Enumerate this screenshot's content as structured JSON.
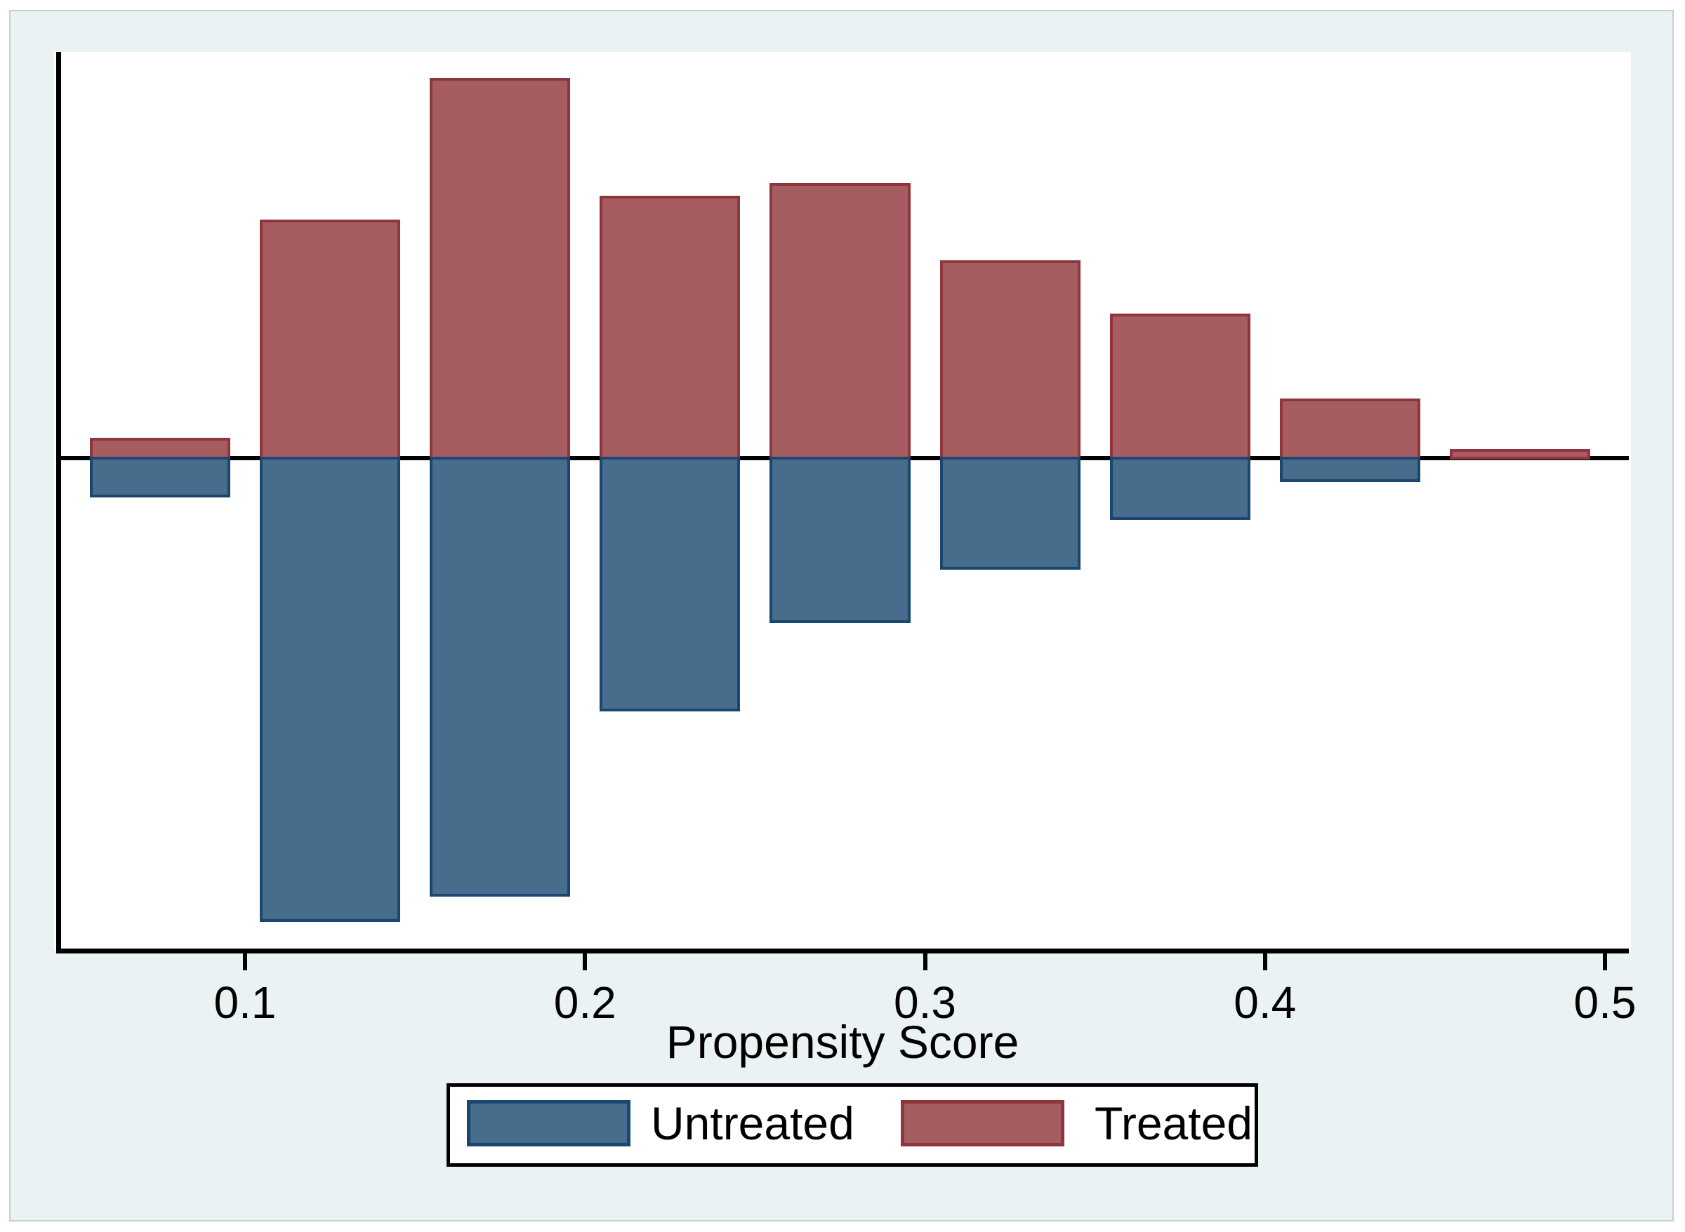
{
  "figure": {
    "background_color": "#EAF2F3",
    "plot_background_color": "#ffffff",
    "axis_color": "#000000"
  },
  "x_axis": {
    "title": "Propensity Score",
    "tick_labels": [
      "0.1",
      "0.2",
      "0.3",
      "0.4",
      "0.5"
    ],
    "tick_values": [
      0.1,
      0.2,
      0.3,
      0.4,
      0.5
    ]
  },
  "legend": {
    "untreated_label": "Untreated",
    "treated_label": "Treated"
  },
  "colors": {
    "treated_fill": "#A65D62",
    "treated_border": "#90353B",
    "untreated_fill": "#486C8C",
    "untreated_border": "#1A476F"
  },
  "chart_data": {
    "type": "bar",
    "subtype": "diverging-histogram",
    "title": "",
    "xlabel": "Propensity Score",
    "ylabel": "",
    "x_range": [
      0.05,
      0.5
    ],
    "bin_width": 0.05,
    "bin_centers": [
      0.075,
      0.125,
      0.175,
      0.225,
      0.275,
      0.325,
      0.375,
      0.425,
      0.475
    ],
    "series": [
      {
        "name": "Treated",
        "direction": "above-axis",
        "values": [
          0.012,
          0.151,
          0.241,
          0.166,
          0.174,
          0.125,
          0.091,
          0.037,
          0.005
        ]
      },
      {
        "name": "Untreated",
        "direction": "below-axis",
        "values": [
          0.026,
          0.296,
          0.28,
          0.162,
          0.106,
          0.072,
          0.04,
          0.016,
          0.0
        ]
      }
    ],
    "legend_entries": [
      "Untreated",
      "Treated"
    ],
    "legend_position": "bottom",
    "grid": false
  }
}
